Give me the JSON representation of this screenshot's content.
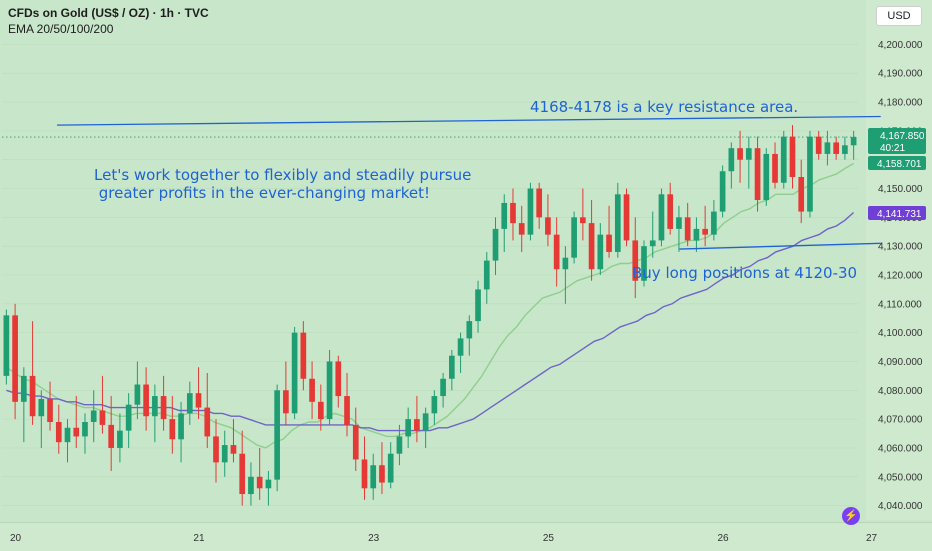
{
  "header": {
    "symbol": "CFDs on Gold (US$ / OZ) · 1h · TVC",
    "indicator": "EMA 20/50/100/200"
  },
  "currency_button": "USD",
  "annotations": {
    "resistance": "4168-4178 is a key resistance area.",
    "motto_line1": "Let's work together to flexibly and steadily pursue",
    "motto_line2": " greater profits in the ever-changing market!",
    "support": "Buy long positions at 4120-30"
  },
  "price_tags": {
    "last_price": "4,167.850",
    "countdown": "40:21",
    "ema_fast": "4,158.701",
    "ema_slow": "4,141.731"
  },
  "colors": {
    "background": "#c8e6c9",
    "up": "#1f9e74",
    "down": "#e53935",
    "ema_fast": "#8ecf8e",
    "ema_slow": "#6f63c9",
    "trendline": "#1e63d6",
    "last_price_tag": "#1f9e74",
    "ema_fast_tag": "#1f9e74",
    "ema_slow_tag": "#6f3fd6"
  },
  "icons": [
    "lightning-icon"
  ],
  "chart_data": {
    "type": "candlestick",
    "y_ticks": [
      "4,200.000",
      "4,190.000",
      "4,180.000",
      "4,170.000",
      "4,160.000",
      "4,150.000",
      "4,140.000",
      "4,130.000",
      "4,120.000",
      "4,110.000",
      "4,100.000",
      "4,090.000",
      "4,080.000",
      "4,070.000",
      "4,060.000",
      "4,050.000",
      "4,040.000"
    ],
    "x_ticks": [
      "20",
      "21",
      "23",
      "25",
      "26",
      "27"
    ],
    "ylim": [
      4035,
      4205
    ],
    "candles": [
      [
        4085,
        4108,
        4082,
        4106
      ],
      [
        4106,
        4110,
        4070,
        4076
      ],
      [
        4076,
        4088,
        4062,
        4085
      ],
      [
        4085,
        4104,
        4068,
        4071
      ],
      [
        4071,
        4080,
        4060,
        4077
      ],
      [
        4077,
        4083,
        4066,
        4069
      ],
      [
        4069,
        4075,
        4058,
        4062
      ],
      [
        4062,
        4070,
        4055,
        4067
      ],
      [
        4067,
        4078,
        4060,
        4064
      ],
      [
        4064,
        4072,
        4058,
        4069
      ],
      [
        4069,
        4080,
        4062,
        4073
      ],
      [
        4073,
        4085,
        4065,
        4068
      ],
      [
        4068,
        4078,
        4052,
        4060
      ],
      [
        4060,
        4072,
        4055,
        4066
      ],
      [
        4066,
        4079,
        4060,
        4075
      ],
      [
        4075,
        4090,
        4070,
        4082
      ],
      [
        4082,
        4088,
        4066,
        4071
      ],
      [
        4071,
        4082,
        4062,
        4078
      ],
      [
        4078,
        4085,
        4066,
        4070
      ],
      [
        4070,
        4078,
        4058,
        4063
      ],
      [
        4063,
        4076,
        4055,
        4072
      ],
      [
        4072,
        4083,
        4068,
        4079
      ],
      [
        4079,
        4088,
        4070,
        4074
      ],
      [
        4074,
        4086,
        4060,
        4064
      ],
      [
        4064,
        4070,
        4048,
        4055
      ],
      [
        4055,
        4066,
        4050,
        4061
      ],
      [
        4061,
        4070,
        4055,
        4058
      ],
      [
        4058,
        4066,
        4040,
        4044
      ],
      [
        4044,
        4055,
        4040,
        4050
      ],
      [
        4050,
        4060,
        4042,
        4046
      ],
      [
        4046,
        4052,
        4040,
        4049
      ],
      [
        4049,
        4082,
        4045,
        4080
      ],
      [
        4080,
        4090,
        4068,
        4072
      ],
      [
        4072,
        4102,
        4070,
        4100
      ],
      [
        4100,
        4104,
        4080,
        4084
      ],
      [
        4084,
        4090,
        4070,
        4076
      ],
      [
        4076,
        4082,
        4066,
        4070
      ],
      [
        4070,
        4094,
        4068,
        4090
      ],
      [
        4090,
        4092,
        4074,
        4078
      ],
      [
        4078,
        4086,
        4064,
        4068
      ],
      [
        4068,
        4074,
        4052,
        4056
      ],
      [
        4056,
        4064,
        4042,
        4046
      ],
      [
        4046,
        4058,
        4042,
        4054
      ],
      [
        4054,
        4062,
        4044,
        4048
      ],
      [
        4048,
        4062,
        4046,
        4058
      ],
      [
        4058,
        4068,
        4054,
        4064
      ],
      [
        4064,
        4074,
        4060,
        4070
      ],
      [
        4070,
        4078,
        4062,
        4066
      ],
      [
        4066,
        4074,
        4060,
        4072
      ],
      [
        4072,
        4080,
        4068,
        4078
      ],
      [
        4078,
        4086,
        4074,
        4084
      ],
      [
        4084,
        4094,
        4080,
        4092
      ],
      [
        4092,
        4100,
        4086,
        4098
      ],
      [
        4098,
        4106,
        4092,
        4104
      ],
      [
        4104,
        4118,
        4100,
        4115
      ],
      [
        4115,
        4128,
        4110,
        4125
      ],
      [
        4125,
        4140,
        4120,
        4136
      ],
      [
        4136,
        4148,
        4128,
        4145
      ],
      [
        4145,
        4150,
        4132,
        4138
      ],
      [
        4138,
        4144,
        4128,
        4134
      ],
      [
        4134,
        4152,
        4132,
        4150
      ],
      [
        4150,
        4152,
        4136,
        4140
      ],
      [
        4140,
        4148,
        4130,
        4134
      ],
      [
        4134,
        4140,
        4116,
        4122
      ],
      [
        4122,
        4130,
        4110,
        4126
      ],
      [
        4126,
        4142,
        4124,
        4140
      ],
      [
        4140,
        4150,
        4132,
        4138
      ],
      [
        4138,
        4146,
        4118,
        4122
      ],
      [
        4122,
        4138,
        4120,
        4134
      ],
      [
        4134,
        4144,
        4126,
        4128
      ],
      [
        4128,
        4152,
        4126,
        4148
      ],
      [
        4148,
        4150,
        4130,
        4132
      ],
      [
        4132,
        4140,
        4112,
        4118
      ],
      [
        4118,
        4132,
        4116,
        4130
      ],
      [
        4130,
        4142,
        4126,
        4132
      ],
      [
        4132,
        4150,
        4130,
        4148
      ],
      [
        4148,
        4152,
        4134,
        4136
      ],
      [
        4136,
        4144,
        4128,
        4140
      ],
      [
        4140,
        4145,
        4130,
        4132
      ],
      [
        4132,
        4140,
        4128,
        4136
      ],
      [
        4136,
        4144,
        4130,
        4134
      ],
      [
        4134,
        4146,
        4132,
        4142
      ],
      [
        4142,
        4158,
        4140,
        4156
      ],
      [
        4156,
        4166,
        4150,
        4164
      ],
      [
        4164,
        4170,
        4152,
        4160
      ],
      [
        4160,
        4168,
        4150,
        4164
      ],
      [
        4164,
        4168,
        4142,
        4146
      ],
      [
        4146,
        4164,
        4144,
        4162
      ],
      [
        4162,
        4166,
        4150,
        4152
      ],
      [
        4152,
        4170,
        4150,
        4168
      ],
      [
        4168,
        4172,
        4150,
        4154
      ],
      [
        4154,
        4160,
        4138,
        4142
      ],
      [
        4142,
        4170,
        4140,
        4168
      ],
      [
        4168,
        4170,
        4160,
        4162
      ],
      [
        4162,
        4170,
        4158,
        4166
      ],
      [
        4166,
        4168,
        4160,
        4162
      ],
      [
        4162,
        4168,
        4160,
        4165
      ],
      [
        4165,
        4170,
        4160,
        4167.85
      ]
    ],
    "ema_fast": [
      4088,
      4086,
      4084,
      4083,
      4081,
      4079,
      4077,
      4076,
      4075,
      4074,
      4074,
      4073,
      4072,
      4071,
      4071,
      4072,
      4072,
      4072,
      4072,
      4071,
      4071,
      4072,
      4072,
      4071,
      4069,
      4068,
      4067,
      4065,
      4063,
      4061,
      4060,
      4062,
      4063,
      4066,
      4068,
      4069,
      4069,
      4071,
      4072,
      4071,
      4070,
      4067,
      4066,
      4065,
      4064,
      4064,
      4065,
      4065,
      4066,
      4067,
      4069,
      4071,
      4074,
      4077,
      4081,
      4085,
      4090,
      4095,
      4099,
      4102,
      4106,
      4109,
      4112,
      4113,
      4114,
      4116,
      4118,
      4119,
      4120,
      4121,
      4123,
      4124,
      4124,
      4125,
      4126,
      4128,
      4129,
      4130,
      4131,
      4132,
      4132,
      4133,
      4135,
      4138,
      4140,
      4142,
      4143,
      4145,
      4146,
      4148,
      4148,
      4148,
      4150,
      4151,
      4153,
      4154,
      4155,
      4157,
      4158.7
    ],
    "ema_slow": [
      4080,
      4079,
      4079,
      4078,
      4078,
      4077,
      4077,
      4076,
      4076,
      4075,
      4075,
      4075,
      4074,
      4074,
      4074,
      4074,
      4074,
      4074,
      4074,
      4074,
      4073,
      4073,
      4073,
      4073,
      4072,
      4072,
      4071,
      4071,
      4070,
      4069,
      4068,
      4068,
      4068,
      4068,
      4068,
      4068,
      4068,
      4068,
      4068,
      4068,
      4068,
      4067,
      4067,
      4066,
      4066,
      4066,
      4066,
      4066,
      4066,
      4066,
      4067,
      4067,
      4068,
      4069,
      4070,
      4072,
      4074,
      4076,
      4078,
      4080,
      4082,
      4084,
      4086,
      4088,
      4089,
      4091,
      4093,
      4095,
      4097,
      4098,
      4100,
      4102,
      4103,
      4104,
      4106,
      4107,
      4109,
      4110,
      4112,
      4113,
      4114,
      4115,
      4117,
      4119,
      4120,
      4122,
      4123,
      4125,
      4126,
      4128,
      4129,
      4130,
      4132,
      4133,
      4134,
      4136,
      4137,
      4139,
      4141.7
    ],
    "trendlines": [
      {
        "from": [
          "20",
          4172
        ],
        "to": [
          "27",
          4175
        ]
      },
      {
        "from": [
          "26",
          4129
        ],
        "to": [
          "27",
          4131
        ]
      }
    ]
  }
}
